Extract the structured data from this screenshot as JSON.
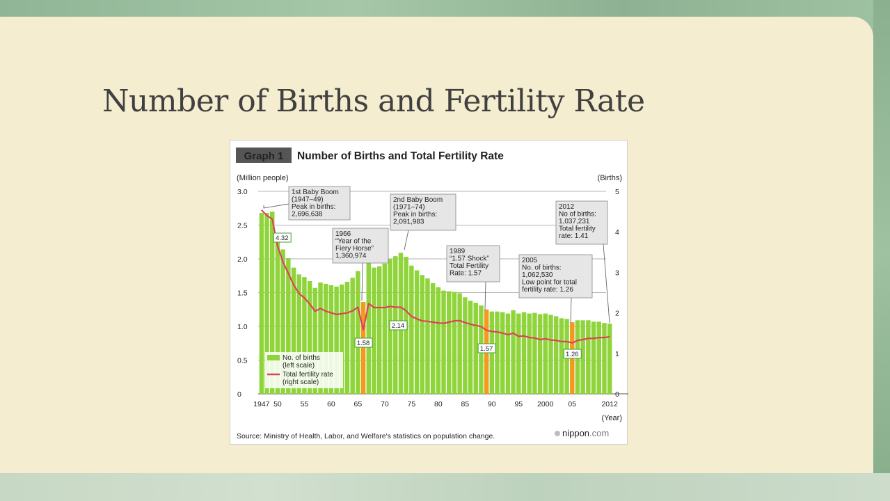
{
  "slide": {
    "title": "Number of Births and Fertility Rate"
  },
  "figure": {
    "badge": "Graph 1",
    "heading": "Number of Births and Total Fertility Rate",
    "left_unit": "(Million people)",
    "right_unit": "(Births)",
    "x_unit": "(Year)",
    "source": "Source: Ministry of Health, Labor, and Welfare's statistics on population change.",
    "brand_name": "nippon",
    "brand_suffix": ".com",
    "x_tick_labels": [
      "1947",
      "50",
      "55",
      "60",
      "65",
      "70",
      "75",
      "80",
      "85",
      "90",
      "95",
      "2000",
      "05",
      "2012"
    ],
    "left_tick_labels": [
      "3.0",
      "2.5",
      "2.0",
      "1.5",
      "1.0",
      "0.5",
      "0"
    ],
    "right_tick_labels": [
      "5",
      "4",
      "3",
      "2",
      "1",
      "0"
    ],
    "legend": {
      "births": [
        "No. of births",
        "(left scale)"
      ],
      "rate": [
        "Total fertility rate",
        "(right scale)"
      ]
    },
    "callouts": {
      "boom1": [
        "1st Baby Boom",
        "(1947–49)",
        "Peak in births:",
        "2,696,638"
      ],
      "boom2": [
        "2nd Baby Boom",
        "(1971–74)",
        "Peak in births:",
        "2,091,983"
      ],
      "horse": [
        "1966",
        "“Year of the",
        "Fiery Horse”",
        "1,360,974"
      ],
      "shock": [
        "1989",
        "“1.57 Shock”",
        "Total Fertility",
        "Rate: 1.57"
      ],
      "low2005": [
        "2005",
        "No. of births:",
        "1,062,530",
        "Low point for total",
        "fertility rate: 1.26"
      ],
      "y2012": [
        "2012",
        "No of births:",
        "1,037,231",
        "Total fertility",
        "rate: 1.41"
      ]
    },
    "value_tags": [
      "4.32",
      "1.58",
      "2.14",
      "1.57",
      "1.26"
    ]
  },
  "colors": {
    "bar": "#8fd43a",
    "highlight_bar": "#f39a1e",
    "rate_line": "#e0405a",
    "badge_bg": "#555555",
    "callout_bg": "#e6e6e6",
    "tag_border": "#4a9a3a"
  },
  "chart_data": {
    "type": "bar",
    "title": "Number of Births and Total Fertility Rate",
    "xlabel": "(Year)",
    "ylabel": "(Million people)",
    "y2label": "(Births)",
    "ylim": [
      0,
      3.0
    ],
    "y2lim": [
      0,
      5
    ],
    "grid": true,
    "legend_position": "bottom-left",
    "x": [
      1947,
      1948,
      1949,
      1950,
      1951,
      1952,
      1953,
      1954,
      1955,
      1956,
      1957,
      1958,
      1959,
      1960,
      1961,
      1962,
      1963,
      1964,
      1965,
      1966,
      1967,
      1968,
      1969,
      1970,
      1971,
      1972,
      1973,
      1974,
      1975,
      1976,
      1977,
      1978,
      1979,
      1980,
      1981,
      1982,
      1983,
      1984,
      1985,
      1986,
      1987,
      1988,
      1989,
      1990,
      1991,
      1992,
      1993,
      1994,
      1995,
      1996,
      1997,
      1998,
      1999,
      2000,
      2001,
      2002,
      2003,
      2004,
      2005,
      2006,
      2007,
      2008,
      2009,
      2010,
      2011,
      2012
    ],
    "highlight_years": [
      1966,
      1989,
      2005
    ],
    "series": [
      {
        "name": "No. of births",
        "axis": "left",
        "type": "bar",
        "values": [
          2.68,
          2.68,
          2.7,
          2.34,
          2.14,
          2.01,
          1.87,
          1.77,
          1.73,
          1.67,
          1.57,
          1.65,
          1.63,
          1.61,
          1.59,
          1.62,
          1.66,
          1.72,
          1.82,
          1.36,
          1.94,
          1.87,
          1.89,
          1.93,
          2.0,
          2.04,
          2.09,
          2.03,
          1.9,
          1.83,
          1.76,
          1.71,
          1.64,
          1.58,
          1.53,
          1.52,
          1.51,
          1.49,
          1.43,
          1.38,
          1.35,
          1.31,
          1.25,
          1.22,
          1.22,
          1.21,
          1.19,
          1.24,
          1.19,
          1.21,
          1.19,
          1.2,
          1.18,
          1.19,
          1.17,
          1.15,
          1.12,
          1.11,
          1.06,
          1.09,
          1.09,
          1.09,
          1.07,
          1.07,
          1.05,
          1.04
        ]
      },
      {
        "name": "Total fertility rate",
        "axis": "right",
        "type": "line",
        "values": [
          4.54,
          4.4,
          4.32,
          3.65,
          3.26,
          2.98,
          2.69,
          2.48,
          2.37,
          2.22,
          2.04,
          2.11,
          2.04,
          2.0,
          1.96,
          1.98,
          2.0,
          2.05,
          2.14,
          1.58,
          2.23,
          2.13,
          2.13,
          2.13,
          2.16,
          2.14,
          2.14,
          2.05,
          1.91,
          1.85,
          1.8,
          1.79,
          1.77,
          1.75,
          1.74,
          1.77,
          1.8,
          1.81,
          1.76,
          1.72,
          1.69,
          1.66,
          1.57,
          1.54,
          1.53,
          1.5,
          1.46,
          1.5,
          1.42,
          1.43,
          1.39,
          1.38,
          1.34,
          1.36,
          1.33,
          1.32,
          1.29,
          1.29,
          1.26,
          1.32,
          1.34,
          1.37,
          1.37,
          1.39,
          1.39,
          1.41
        ]
      }
    ]
  }
}
